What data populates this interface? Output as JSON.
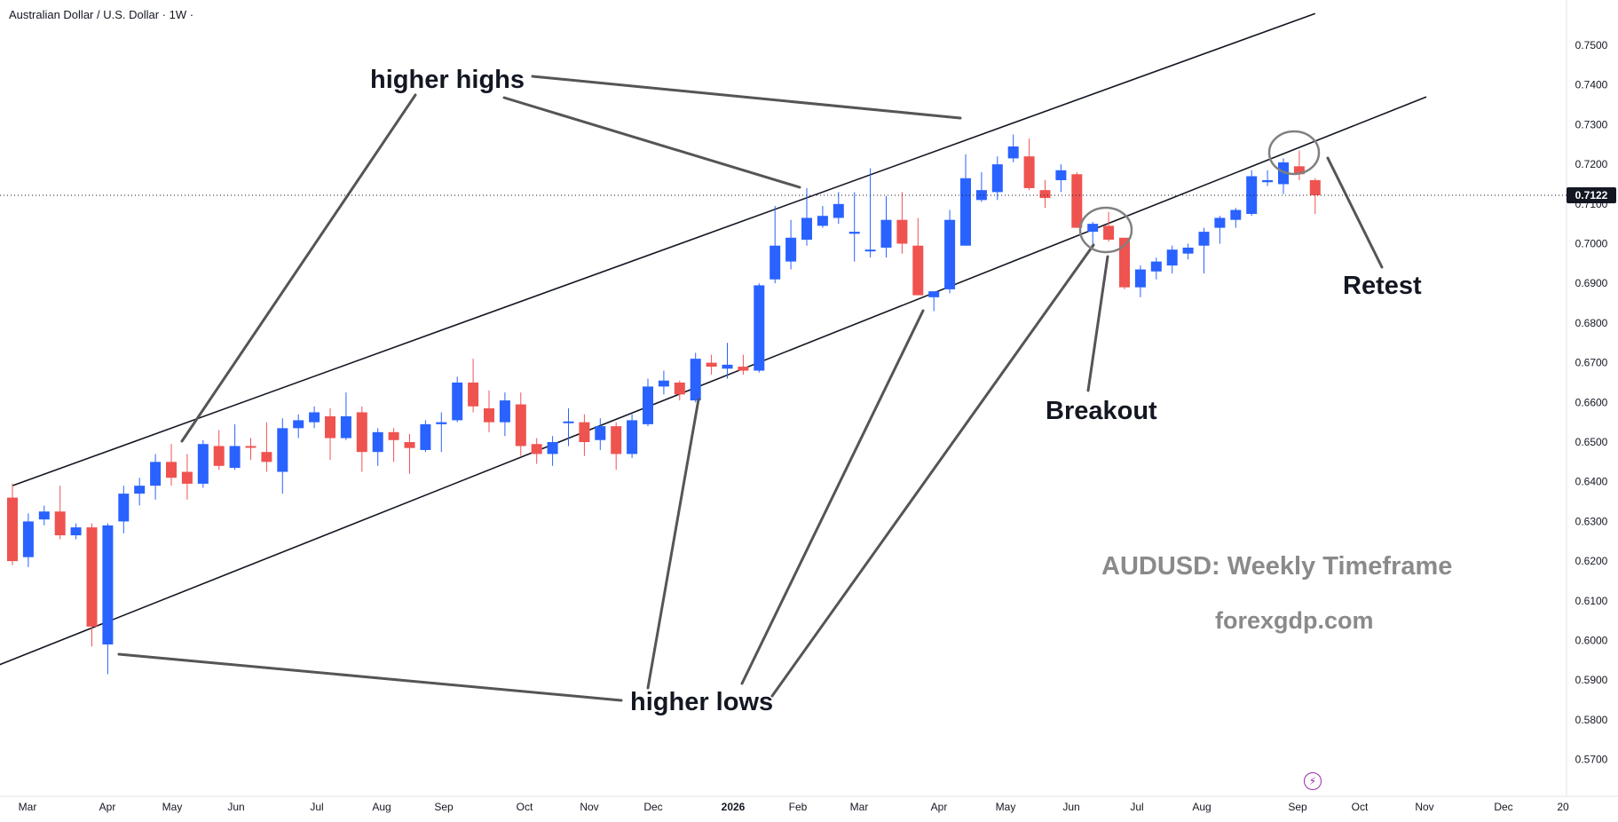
{
  "header": {
    "symbol_title": "Australian Dollar / U.S. Dollar · 1W ·"
  },
  "price_axis": {
    "ticks": [
      "0.7500",
      "0.7400",
      "0.7300",
      "0.7200",
      "0.7100",
      "0.7000",
      "0.6900",
      "0.6800",
      "0.6700",
      "0.6600",
      "0.6500",
      "0.6400",
      "0.6300",
      "0.6200",
      "0.6100",
      "0.6000",
      "0.5900",
      "0.5800",
      "0.5700"
    ],
    "current_price": "0.7122"
  },
  "time_axis": {
    "ticks": [
      "Mar",
      "Apr",
      "May",
      "Jun",
      "Jul",
      "Aug",
      "Sep",
      "Oct",
      "Nov",
      "Dec",
      "2026",
      "Feb",
      "Mar",
      "Apr",
      "May",
      "Jun",
      "Jul",
      "Aug",
      "Sep",
      "Oct",
      "Nov",
      "Dec",
      "20"
    ]
  },
  "annotations": {
    "higher_highs": "higher highs",
    "higher_lows": "higher lows",
    "breakout": "Breakout",
    "retest": "Retest"
  },
  "watermark": {
    "title": "AUDUSD: Weekly Timeframe",
    "site": "forexgdp.com"
  },
  "colors": {
    "bull": "#2962ff",
    "bear": "#ef5350",
    "channel": "#131722",
    "arrow": "#555555",
    "watermark": "#8a8a8a",
    "circle": "#808080"
  },
  "icons": {
    "event": "lightning-icon"
  },
  "chart_data": {
    "type": "candlestick",
    "title": "",
    "timeframe": "1W",
    "y_range": [
      0.565,
      0.755
    ],
    "candles": [
      {
        "o": 0.636,
        "h": 0.6395,
        "l": 0.619,
        "c": 0.62
      },
      {
        "o": 0.621,
        "h": 0.632,
        "l": 0.6185,
        "c": 0.63
      },
      {
        "o": 0.6305,
        "h": 0.634,
        "l": 0.629,
        "c": 0.6325
      },
      {
        "o": 0.6325,
        "h": 0.639,
        "l": 0.6255,
        "c": 0.6265
      },
      {
        "o": 0.6265,
        "h": 0.6295,
        "l": 0.6255,
        "c": 0.6285
      },
      {
        "o": 0.6285,
        "h": 0.6295,
        "l": 0.5985,
        "c": 0.6035
      },
      {
        "o": 0.599,
        "h": 0.6295,
        "l": 0.5915,
        "c": 0.629
      },
      {
        "o": 0.63,
        "h": 0.639,
        "l": 0.627,
        "c": 0.637
      },
      {
        "o": 0.637,
        "h": 0.641,
        "l": 0.634,
        "c": 0.639
      },
      {
        "o": 0.639,
        "h": 0.647,
        "l": 0.6355,
        "c": 0.645
      },
      {
        "o": 0.645,
        "h": 0.6495,
        "l": 0.639,
        "c": 0.641
      },
      {
        "o": 0.6425,
        "h": 0.647,
        "l": 0.6355,
        "c": 0.6395
      },
      {
        "o": 0.6395,
        "h": 0.6505,
        "l": 0.6385,
        "c": 0.6495
      },
      {
        "o": 0.649,
        "h": 0.653,
        "l": 0.643,
        "c": 0.644
      },
      {
        "o": 0.6435,
        "h": 0.6545,
        "l": 0.643,
        "c": 0.649
      },
      {
        "o": 0.649,
        "h": 0.651,
        "l": 0.6455,
        "c": 0.6487
      },
      {
        "o": 0.6475,
        "h": 0.655,
        "l": 0.6425,
        "c": 0.645
      },
      {
        "o": 0.6425,
        "h": 0.656,
        "l": 0.637,
        "c": 0.6535
      },
      {
        "o": 0.6535,
        "h": 0.657,
        "l": 0.651,
        "c": 0.6555
      },
      {
        "o": 0.655,
        "h": 0.659,
        "l": 0.6535,
        "c": 0.6575
      },
      {
        "o": 0.6565,
        "h": 0.6585,
        "l": 0.6455,
        "c": 0.651
      },
      {
        "o": 0.651,
        "h": 0.6625,
        "l": 0.6505,
        "c": 0.6565
      },
      {
        "o": 0.6575,
        "h": 0.659,
        "l": 0.6425,
        "c": 0.6475
      },
      {
        "o": 0.6475,
        "h": 0.6535,
        "l": 0.644,
        "c": 0.6525
      },
      {
        "o": 0.6525,
        "h": 0.6535,
        "l": 0.645,
        "c": 0.6505
      },
      {
        "o": 0.65,
        "h": 0.652,
        "l": 0.642,
        "c": 0.6485
      },
      {
        "o": 0.648,
        "h": 0.6555,
        "l": 0.6475,
        "c": 0.6545
      },
      {
        "o": 0.6545,
        "h": 0.6575,
        "l": 0.6475,
        "c": 0.655
      },
      {
        "o": 0.6555,
        "h": 0.6665,
        "l": 0.655,
        "c": 0.665
      },
      {
        "o": 0.665,
        "h": 0.671,
        "l": 0.6575,
        "c": 0.659
      },
      {
        "o": 0.6585,
        "h": 0.663,
        "l": 0.6525,
        "c": 0.655
      },
      {
        "o": 0.655,
        "h": 0.6625,
        "l": 0.6515,
        "c": 0.6605
      },
      {
        "o": 0.6595,
        "h": 0.6625,
        "l": 0.6465,
        "c": 0.649
      },
      {
        "o": 0.6495,
        "h": 0.651,
        "l": 0.6445,
        "c": 0.647
      },
      {
        "o": 0.647,
        "h": 0.6515,
        "l": 0.644,
        "c": 0.65
      },
      {
        "o": 0.6548,
        "h": 0.6585,
        "l": 0.649,
        "c": 0.6552
      },
      {
        "o": 0.655,
        "h": 0.657,
        "l": 0.6465,
        "c": 0.65
      },
      {
        "o": 0.6505,
        "h": 0.656,
        "l": 0.648,
        "c": 0.654
      },
      {
        "o": 0.654,
        "h": 0.655,
        "l": 0.643,
        "c": 0.647
      },
      {
        "o": 0.647,
        "h": 0.657,
        "l": 0.646,
        "c": 0.6555
      },
      {
        "o": 0.6545,
        "h": 0.666,
        "l": 0.654,
        "c": 0.664
      },
      {
        "o": 0.664,
        "h": 0.668,
        "l": 0.662,
        "c": 0.6655
      },
      {
        "o": 0.665,
        "h": 0.6655,
        "l": 0.6605,
        "c": 0.662
      },
      {
        "o": 0.6605,
        "h": 0.6725,
        "l": 0.66,
        "c": 0.671
      },
      {
        "o": 0.67,
        "h": 0.672,
        "l": 0.667,
        "c": 0.669
      },
      {
        "o": 0.6685,
        "h": 0.675,
        "l": 0.666,
        "c": 0.6695
      },
      {
        "o": 0.669,
        "h": 0.672,
        "l": 0.667,
        "c": 0.668
      },
      {
        "o": 0.668,
        "h": 0.69,
        "l": 0.6675,
        "c": 0.6895
      },
      {
        "o": 0.691,
        "h": 0.7095,
        "l": 0.69,
        "c": 0.6995
      },
      {
        "o": 0.6955,
        "h": 0.706,
        "l": 0.6935,
        "c": 0.7015
      },
      {
        "o": 0.701,
        "h": 0.714,
        "l": 0.6995,
        "c": 0.7065
      },
      {
        "o": 0.7045,
        "h": 0.7095,
        "l": 0.704,
        "c": 0.707
      },
      {
        "o": 0.7065,
        "h": 0.713,
        "l": 0.705,
        "c": 0.71
      },
      {
        "o": 0.7025,
        "h": 0.713,
        "l": 0.6955,
        "c": 0.703
      },
      {
        "o": 0.6985,
        "h": 0.719,
        "l": 0.6965,
        "c": 0.6985
      },
      {
        "o": 0.699,
        "h": 0.712,
        "l": 0.6965,
        "c": 0.706
      },
      {
        "o": 0.706,
        "h": 0.713,
        "l": 0.6975,
        "c": 0.7
      },
      {
        "o": 0.6995,
        "h": 0.7065,
        "l": 0.687,
        "c": 0.687
      },
      {
        "o": 0.6865,
        "h": 0.688,
        "l": 0.683,
        "c": 0.688
      },
      {
        "o": 0.6885,
        "h": 0.7085,
        "l": 0.6875,
        "c": 0.706
      },
      {
        "o": 0.6995,
        "h": 0.7225,
        "l": 0.6995,
        "c": 0.7165
      },
      {
        "o": 0.711,
        "h": 0.718,
        "l": 0.7105,
        "c": 0.7135
      },
      {
        "o": 0.713,
        "h": 0.722,
        "l": 0.711,
        "c": 0.72
      },
      {
        "o": 0.7215,
        "h": 0.7275,
        "l": 0.7205,
        "c": 0.7245
      },
      {
        "o": 0.722,
        "h": 0.7265,
        "l": 0.7135,
        "c": 0.714
      },
      {
        "o": 0.7135,
        "h": 0.716,
        "l": 0.709,
        "c": 0.7115
      },
      {
        "o": 0.716,
        "h": 0.72,
        "l": 0.713,
        "c": 0.7185
      },
      {
        "o": 0.7175,
        "h": 0.718,
        "l": 0.704,
        "c": 0.704
      },
      {
        "o": 0.703,
        "h": 0.7055,
        "l": 0.6985,
        "c": 0.705
      },
      {
        "o": 0.7045,
        "h": 0.708,
        "l": 0.7005,
        "c": 0.701
      },
      {
        "o": 0.7015,
        "h": 0.7015,
        "l": 0.6885,
        "c": 0.689
      },
      {
        "o": 0.689,
        "h": 0.6945,
        "l": 0.6865,
        "c": 0.6935
      },
      {
        "o": 0.693,
        "h": 0.6965,
        "l": 0.691,
        "c": 0.6955
      },
      {
        "o": 0.6945,
        "h": 0.6995,
        "l": 0.6925,
        "c": 0.6985
      },
      {
        "o": 0.6975,
        "h": 0.7,
        "l": 0.696,
        "c": 0.699
      },
      {
        "o": 0.6995,
        "h": 0.704,
        "l": 0.6925,
        "c": 0.703
      },
      {
        "o": 0.704,
        "h": 0.707,
        "l": 0.7,
        "c": 0.7065
      },
      {
        "o": 0.706,
        "h": 0.709,
        "l": 0.704,
        "c": 0.7085
      },
      {
        "o": 0.7075,
        "h": 0.7185,
        "l": 0.707,
        "c": 0.717
      },
      {
        "o": 0.7155,
        "h": 0.7185,
        "l": 0.7145,
        "c": 0.716
      },
      {
        "o": 0.715,
        "h": 0.7215,
        "l": 0.7125,
        "c": 0.7205
      },
      {
        "o": 0.7195,
        "h": 0.7235,
        "l": 0.716,
        "c": 0.7175
      },
      {
        "o": 0.716,
        "h": 0.7165,
        "l": 0.7075,
        "c": 0.7122
      }
    ],
    "trendlines": [
      {
        "name": "upper channel",
        "points": [
          [
            0,
            0.639
          ],
          [
            82,
            0.758
          ]
        ]
      },
      {
        "name": "lower channel",
        "points": [
          [
            -2,
            0.592
          ],
          [
            89,
            0.737
          ]
        ]
      }
    ],
    "retest_price": 0.7122
  }
}
